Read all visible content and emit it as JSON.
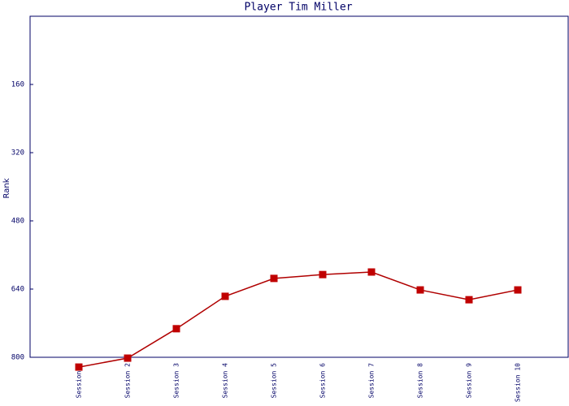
{
  "chart_data": {
    "type": "line",
    "title": "Player Tim Miller",
    "y_label": "Rank",
    "categories": [
      "Session 1",
      "Session 2",
      "Session 3",
      "Session 4",
      "Session 5",
      "Session 6",
      "Session 7",
      "Session 8",
      "Session 9",
      "Session 10"
    ],
    "series": [
      {
        "name": "Rank",
        "color": "#b00000",
        "marker_color": "#c00000",
        "values": [
          823,
          802,
          733,
          657,
          615,
          606,
          600,
          642,
          665,
          642
        ]
      }
    ],
    "ylim": [
      0,
      800
    ],
    "y_inverted": true,
    "yticks": [
      160,
      320,
      480,
      640,
      800
    ],
    "grid": false
  }
}
